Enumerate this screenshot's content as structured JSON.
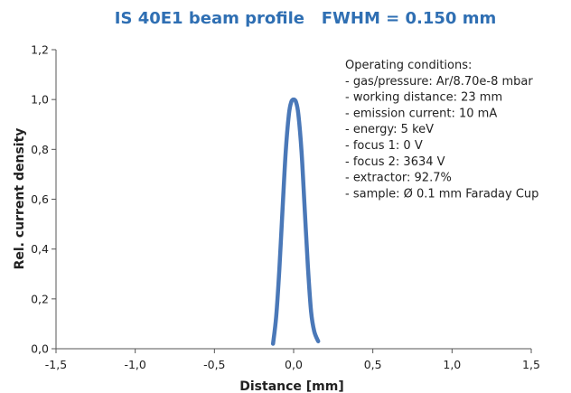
{
  "chart_data": {
    "type": "line",
    "title": "IS 40E1 beam profile   FWHM = 0.150 mm",
    "xlabel": "Distance [mm]",
    "ylabel": "Rel. current density",
    "xlim": [
      -1.5,
      1.5
    ],
    "ylim": [
      0.0,
      1.2
    ],
    "x_ticks": [
      "-1,5",
      "-1,0",
      "-0,5",
      "0,0",
      "0,5",
      "1,0",
      "1,5"
    ],
    "y_ticks": [
      "0,0",
      "0,2",
      "0,4",
      "0,6",
      "0,8",
      "1,0",
      "1,2"
    ],
    "grid": false,
    "line_color": "#4a78b8",
    "series": [
      {
        "x": [
          -0.13,
          -0.11,
          -0.09,
          -0.07,
          -0.05,
          -0.03,
          -0.015,
          0.0,
          0.015,
          0.03,
          0.05,
          0.07,
          0.09,
          0.11,
          0.13,
          0.155
        ],
        "y": [
          0.02,
          0.13,
          0.32,
          0.56,
          0.79,
          0.94,
          0.99,
          1.0,
          0.99,
          0.94,
          0.79,
          0.56,
          0.33,
          0.15,
          0.07,
          0.03
        ]
      }
    ],
    "annotations": [
      "Operating conditions:",
      "- gas/pressure: Ar/8.70e-8 mbar",
      "- working distance: 23 mm",
      "- emission current: 10 mA",
      "- energy: 5 keV",
      "- focus 1: 0 V",
      "- focus 2: 3634 V",
      "- extractor: 92.7%",
      "- sample: Ø 0.1 mm Faraday Cup"
    ]
  }
}
